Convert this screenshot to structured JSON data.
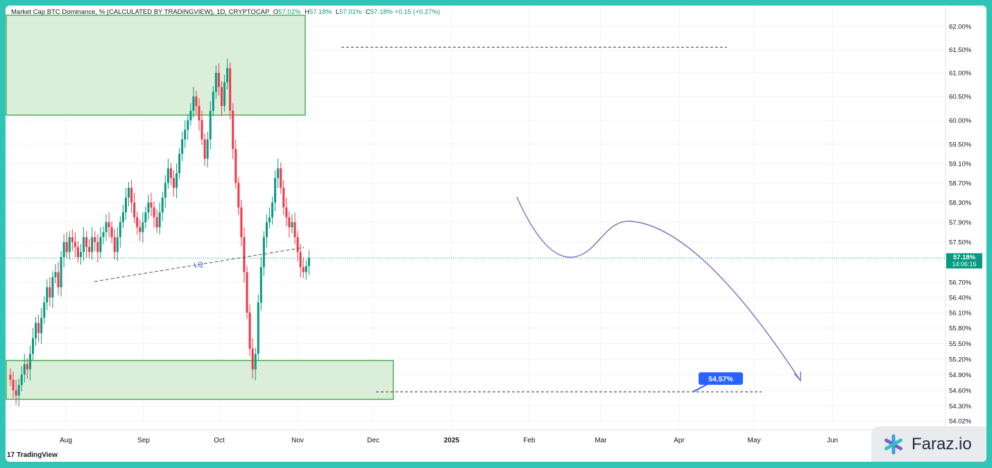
{
  "header": {
    "title": "Market Cap BTC Dominance, % (CALCULATED BY TRADINGVIEW), 1D, CRYPTOCAP",
    "open_label": "O",
    "open": "57.02%",
    "high_label": "H",
    "high": "57.18%",
    "low_label": "L",
    "low": "57.01%",
    "close_label": "C",
    "close": "57.18%",
    "change": "+0.15 (+0.27%)"
  },
  "price_tag": {
    "value": "57.18%",
    "timer": "14:06:16",
    "color": "#089981"
  },
  "target_label": "54.57%",
  "lq_label": "LQ",
  "footer": {
    "logo_text": "TradingView",
    "brand": "Faraz.io"
  },
  "colors": {
    "up": "#089981",
    "down": "#f23645",
    "zone_fill": "#d6ecd6",
    "zone_border": "#4caf50",
    "projection": "#7e6bc4",
    "target_badge": "#2962ff",
    "trendline": "#555555"
  },
  "chart_data": {
    "type": "candlestick",
    "title": "Market Cap BTC Dominance, % (CALCULATED BY TRADINGVIEW), 1D, CRYPTOCAP",
    "x_ticks": [
      "Aug",
      "Sep",
      "Oct",
      "Nov",
      "Dec",
      "2025",
      "Feb",
      "Mar",
      "Apr",
      "May",
      "Jun"
    ],
    "y_ticks": [
      "62.00%",
      "61.50%",
      "61.00%",
      "60.50%",
      "60.00%",
      "59.50%",
      "59.10%",
      "58.70%",
      "58.30%",
      "57.90%",
      "57.50%",
      "57.18%",
      "56.70%",
      "56.40%",
      "56.10%",
      "55.80%",
      "55.50%",
      "55.20%",
      "54.90%",
      "54.60%",
      "54.30%",
      "54.02%"
    ],
    "y_scale": "log",
    "y_range": [
      54.02,
      62.0
    ],
    "series": [
      {
        "name": "",
        "values": [
          54.8,
          54.6,
          54.5,
          54.7,
          54.9,
          55.1,
          55.0,
          55.3,
          55.6,
          55.9,
          55.7,
          56.0,
          56.3,
          56.6,
          56.4,
          56.8,
          56.9,
          56.6,
          57.2,
          57.5,
          57.3,
          57.6,
          57.5,
          57.4,
          57.2,
          57.3,
          57.6,
          57.4,
          57.3,
          57.6,
          57.5,
          57.3,
          57.6,
          57.7,
          57.9,
          57.8,
          57.6,
          57.3,
          57.6,
          57.9,
          58.1,
          58.4,
          58.6,
          58.3,
          58.0,
          57.8,
          57.7,
          57.9,
          58.1,
          58.3,
          58.2,
          58.0,
          57.8,
          58.1,
          58.4,
          58.7,
          59.0,
          58.8,
          58.6,
          58.9,
          59.3,
          59.6,
          59.8,
          60.0,
          60.2,
          60.5,
          60.3,
          60.0,
          59.6,
          59.2,
          59.6,
          60.2,
          60.6,
          61.0,
          60.7,
          60.3,
          60.8,
          61.1,
          60.2,
          59.4,
          58.7,
          58.2,
          57.6,
          56.9,
          56.1,
          55.4,
          55.0,
          55.3,
          56.3,
          57.0,
          57.6,
          57.9,
          58.0,
          58.3,
          58.8,
          59.0,
          58.6,
          58.2,
          58.0,
          57.8,
          57.9,
          57.6,
          57.3,
          57.0,
          56.9,
          57.02,
          57.18
        ]
      },
      {
        "name": "",
        "values": []
      }
    ],
    "annotations": {
      "resistance": 61.55,
      "support": 54.57,
      "lq_line": "LQ"
    }
  }
}
